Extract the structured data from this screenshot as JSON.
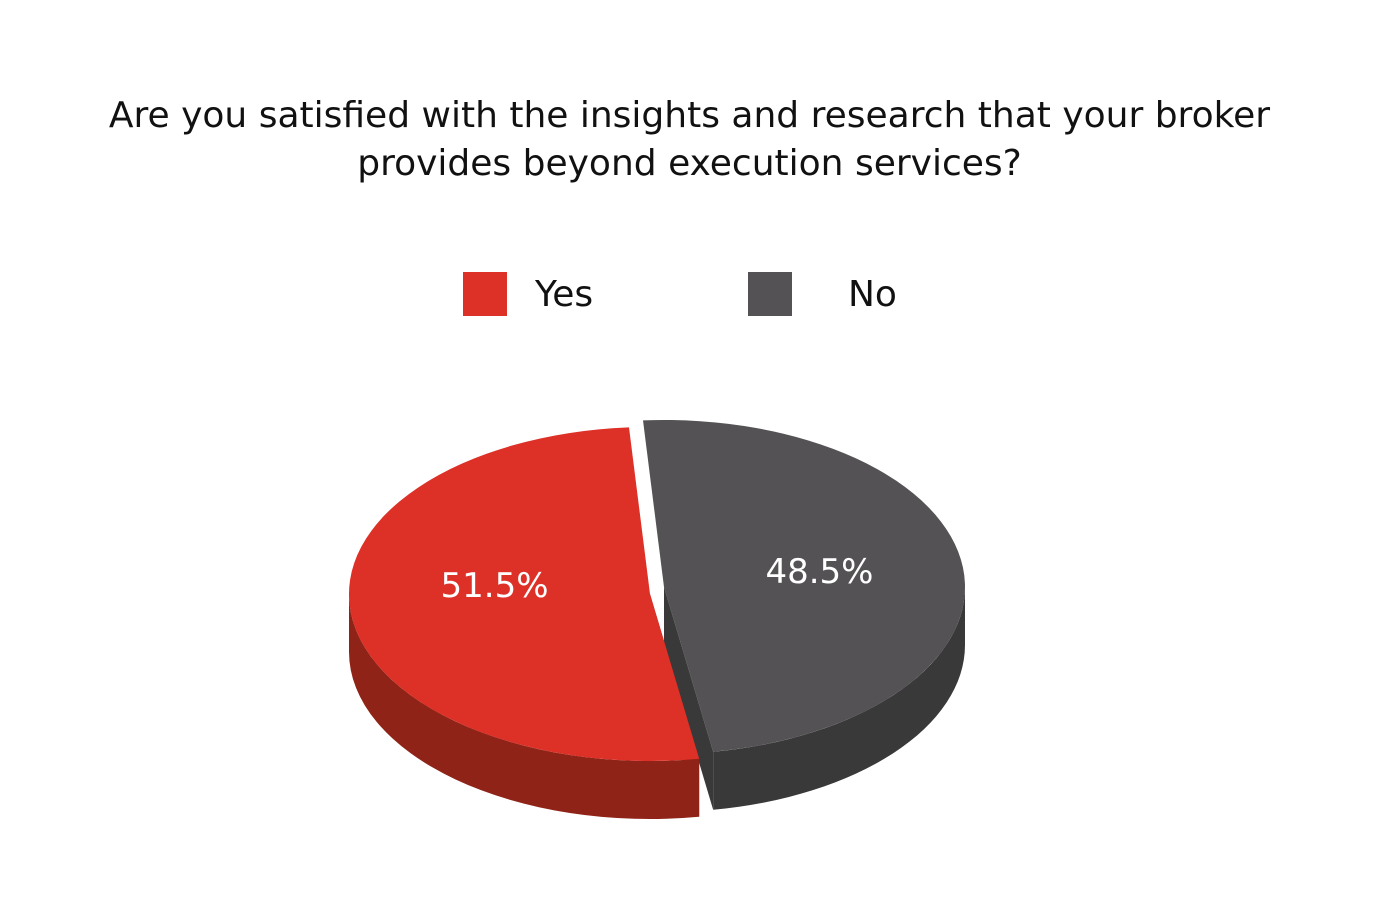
{
  "chart_data": {
    "type": "pie",
    "title": "Are you satisfied with the insights and research that your broker provides beyond execution services?",
    "title_lines": [
      "Are you satisfied with the insights and research that your broker",
      "provides beyond execution services?"
    ],
    "categories": [
      "Yes",
      "No"
    ],
    "values": [
      51.5,
      48.5
    ],
    "value_labels": [
      "51.5%",
      "48.5%"
    ],
    "colors": {
      "Yes": "#dd3027",
      "No": "#545254"
    },
    "side_colors": {
      "Yes": "#8f2317",
      "No": "#3a393a"
    },
    "legend": [
      "Yes",
      "No"
    ],
    "style": "3d-pie"
  }
}
